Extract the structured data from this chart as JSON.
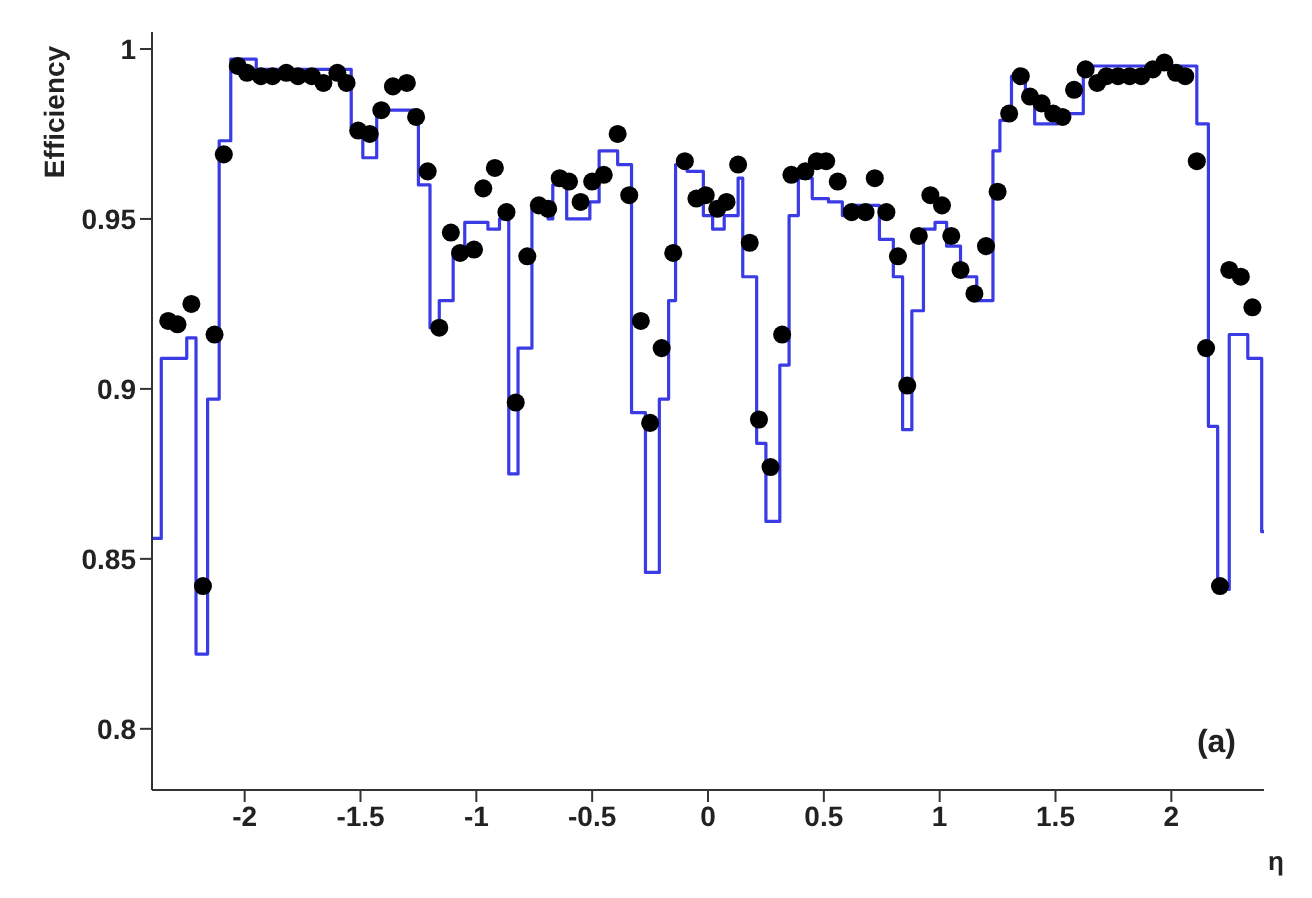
{
  "chart_data": {
    "type": "step",
    "xlabel": "η",
    "ylabel": "Efficiency",
    "annotations": [
      "(a)"
    ],
    "xlim": [
      -2.4,
      2.4
    ],
    "ylim": [
      0.782,
      1.005
    ],
    "xticks": [
      -2,
      -1.5,
      -1,
      -0.5,
      0,
      0.5,
      1,
      1.5,
      2
    ],
    "yticks": [
      0.8,
      0.85,
      0.9,
      0.95,
      1
    ],
    "grid": false,
    "series": [
      {
        "type": "step",
        "color": "#3b3be6",
        "line_style": "solid",
        "marker": "none",
        "x": [
          -2.4,
          -2.36,
          -2.25,
          -2.21,
          -2.16,
          -2.11,
          -2.06,
          -1.95,
          -1.54,
          -1.49,
          -1.43,
          -1.25,
          -1.2,
          -1.16,
          -1.1,
          -1.05,
          -0.95,
          -0.9,
          -0.86,
          -0.82,
          -0.76,
          -0.69,
          -0.67,
          -0.61,
          -0.51,
          -0.47,
          -0.39,
          -0.33,
          -0.27,
          -0.21,
          -0.17,
          -0.14,
          -0.09,
          -0.02,
          0.02,
          0.07,
          0.13,
          0.15,
          0.21,
          0.25,
          0.31,
          0.35,
          0.39,
          0.45,
          0.52,
          0.58,
          0.62,
          0.74,
          0.8,
          0.84,
          0.88,
          0.93,
          0.98,
          1.03,
          1.09,
          1.16,
          1.23,
          1.26,
          1.31,
          1.37,
          1.41,
          1.51,
          1.62,
          2.11,
          2.16,
          2.2,
          2.25,
          2.33,
          2.39,
          2.4
        ],
        "values": [
          0.856,
          0.909,
          0.915,
          0.822,
          0.897,
          0.973,
          0.997,
          0.994,
          0.977,
          0.968,
          0.982,
          0.96,
          0.918,
          0.926,
          0.941,
          0.949,
          0.947,
          0.95,
          0.875,
          0.912,
          0.954,
          0.95,
          0.96,
          0.95,
          0.955,
          0.97,
          0.966,
          0.893,
          0.846,
          0.897,
          0.926,
          0.966,
          0.964,
          0.951,
          0.947,
          0.951,
          0.962,
          0.933,
          0.884,
          0.861,
          0.907,
          0.951,
          0.962,
          0.956,
          0.955,
          0.951,
          0.954,
          0.944,
          0.933,
          0.888,
          0.923,
          0.947,
          0.949,
          0.942,
          0.933,
          0.926,
          0.97,
          0.979,
          0.992,
          0.987,
          0.978,
          0.981,
          0.995,
          0.978,
          0.889,
          0.841,
          0.916,
          0.909,
          0.858,
          0.858
        ]
      },
      {
        "type": "scatter",
        "color": "#000000",
        "marker": "circle",
        "x": [
          -2.33,
          -2.29,
          -2.23,
          -2.18,
          -2.13,
          -2.09,
          -2.03,
          -1.99,
          -1.93,
          -1.88,
          -1.82,
          -1.77,
          -1.71,
          -1.66,
          -1.6,
          -1.56,
          -1.51,
          -1.46,
          -1.41,
          -1.36,
          -1.3,
          -1.26,
          -1.21,
          -1.16,
          -1.11,
          -1.07,
          -1.01,
          -0.97,
          -0.92,
          -0.87,
          -0.83,
          -0.78,
          -0.73,
          -0.69,
          -0.64,
          -0.6,
          -0.55,
          -0.5,
          -0.45,
          -0.39,
          -0.34,
          -0.29,
          -0.25,
          -0.2,
          -0.15,
          -0.1,
          -0.05,
          -0.01,
          0.04,
          0.08,
          0.13,
          0.18,
          0.22,
          0.27,
          0.32,
          0.36,
          0.42,
          0.47,
          0.51,
          0.56,
          0.62,
          0.68,
          0.72,
          0.77,
          0.82,
          0.86,
          0.91,
          0.96,
          1.01,
          1.05,
          1.09,
          1.15,
          1.2,
          1.25,
          1.3,
          1.35,
          1.39,
          1.44,
          1.49,
          1.53,
          1.58,
          1.63,
          1.68,
          1.72,
          1.77,
          1.82,
          1.87,
          1.92,
          1.97,
          2.02,
          2.06,
          2.11,
          2.15,
          2.21,
          2.25,
          2.3,
          2.35
        ],
        "values": [
          0.92,
          0.919,
          0.925,
          0.842,
          0.916,
          0.969,
          0.995,
          0.993,
          0.992,
          0.992,
          0.993,
          0.992,
          0.992,
          0.99,
          0.993,
          0.99,
          0.976,
          0.975,
          0.982,
          0.989,
          0.99,
          0.98,
          0.964,
          0.918,
          0.946,
          0.94,
          0.941,
          0.959,
          0.965,
          0.952,
          0.896,
          0.939,
          0.954,
          0.953,
          0.962,
          0.961,
          0.955,
          0.961,
          0.963,
          0.975,
          0.957,
          0.92,
          0.89,
          0.912,
          0.94,
          0.967,
          0.956,
          0.957,
          0.953,
          0.955,
          0.966,
          0.943,
          0.891,
          0.877,
          0.916,
          0.963,
          0.964,
          0.967,
          0.967,
          0.961,
          0.952,
          0.952,
          0.962,
          0.952,
          0.939,
          0.901,
          0.945,
          0.957,
          0.954,
          0.945,
          0.935,
          0.928,
          0.942,
          0.958,
          0.981,
          0.992,
          0.986,
          0.984,
          0.981,
          0.98,
          0.988,
          0.994,
          0.99,
          0.992,
          0.992,
          0.992,
          0.992,
          0.994,
          0.996,
          0.993,
          0.992,
          0.967,
          0.912,
          0.842,
          0.935,
          0.933,
          0.924
        ]
      }
    ]
  }
}
